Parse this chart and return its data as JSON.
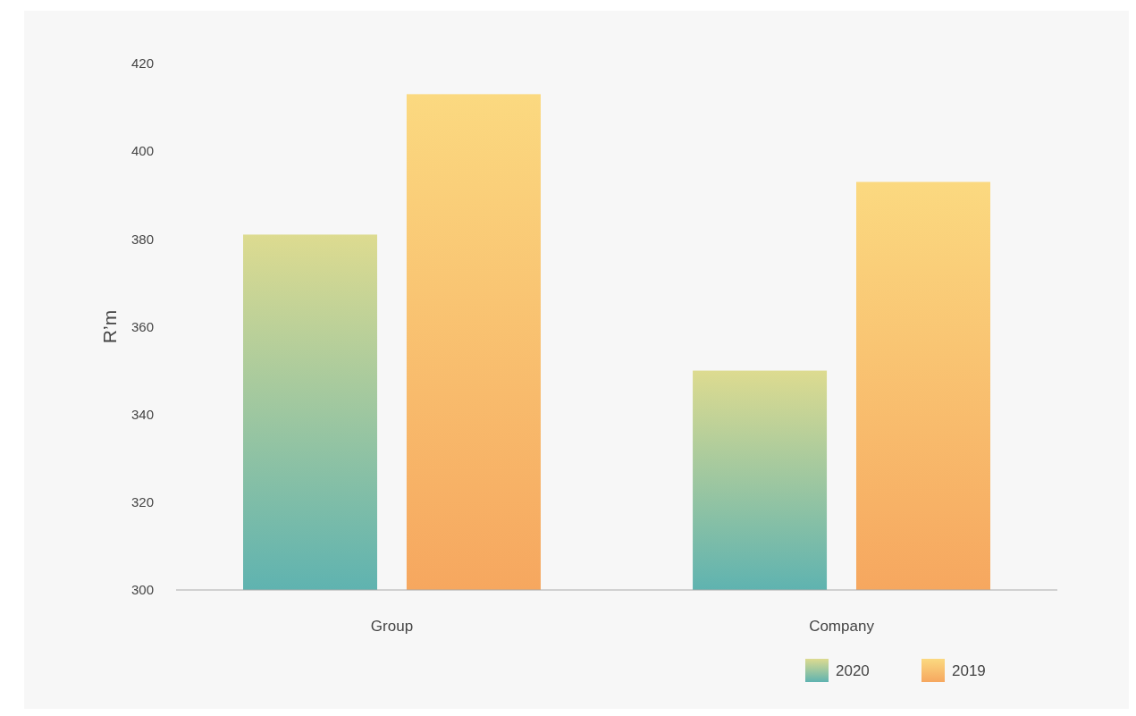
{
  "chart_data": {
    "type": "bar",
    "ylabel": "R’m",
    "categories": [
      "Group",
      "Company"
    ],
    "series": [
      {
        "name": "2020",
        "color": "#5fb3b0",
        "values": [
          381,
          350
        ]
      },
      {
        "name": "2019",
        "color": "#f6a75f",
        "values": [
          413,
          393
        ]
      }
    ],
    "ylim": [
      300,
      420
    ],
    "yticks": [
      300,
      320,
      340,
      360,
      380,
      400,
      420
    ],
    "grid": false,
    "legend": "bottom right"
  }
}
